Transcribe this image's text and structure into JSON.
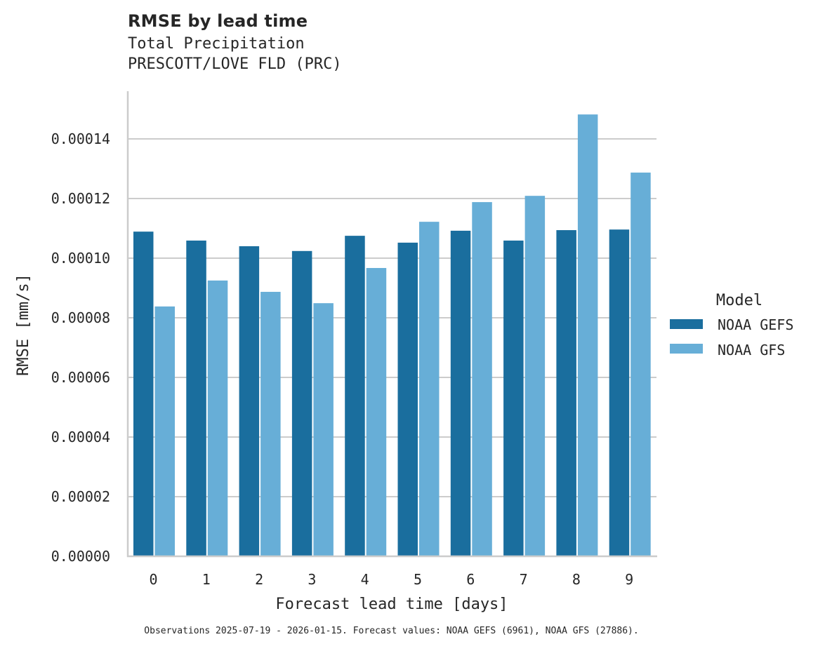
{
  "header": {
    "title": "RMSE by lead time",
    "subtitle_1": "Total Precipitation",
    "subtitle_2": "PRESCOTT/LOVE FLD (PRC)"
  },
  "footnote": "Observations 2025-07-19 - 2026-01-15. Forecast values: NOAA GEFS (6961), NOAA GFS (27886).",
  "legend": {
    "title": "Model",
    "items": [
      {
        "label": "NOAA GEFS",
        "color": "#1a6e9e"
      },
      {
        "label": "NOAA GFS",
        "color": "#67aed7"
      }
    ]
  },
  "chart_data": {
    "type": "bar",
    "title": "RMSE by lead time",
    "subtitle": "Total Precipitation / PRESCOTT/LOVE FLD (PRC)",
    "xlabel": "Forecast lead time [days]",
    "ylabel": "RMSE [mm/s]",
    "categories": [
      "0",
      "1",
      "2",
      "3",
      "4",
      "5",
      "6",
      "7",
      "8",
      "9"
    ],
    "series": [
      {
        "name": "NOAA GEFS",
        "color": "#1a6e9e",
        "values": [
          0.0001089,
          0.0001059,
          0.000104,
          0.0001024,
          0.0001075,
          0.0001052,
          0.0001092,
          0.0001059,
          0.0001094,
          0.0001096
        ]
      },
      {
        "name": "NOAA GFS",
        "color": "#67aed7",
        "values": [
          8.38e-05,
          9.25e-05,
          8.87e-05,
          8.49e-05,
          9.67e-05,
          0.0001122,
          0.0001188,
          0.0001209,
          0.0001482,
          0.0001287
        ]
      }
    ],
    "yticks": [
      "0.00000",
      "0.00002",
      "0.00004",
      "0.00006",
      "0.00008",
      "0.00010",
      "0.00012",
      "0.00014"
    ],
    "ytick_values": [
      0,
      2e-05,
      4e-05,
      6e-05,
      8e-05,
      0.0001,
      0.00012,
      0.00014
    ],
    "ylim": [
      0,
      0.000156
    ],
    "grid": "horizontal",
    "legend_position": "right"
  }
}
